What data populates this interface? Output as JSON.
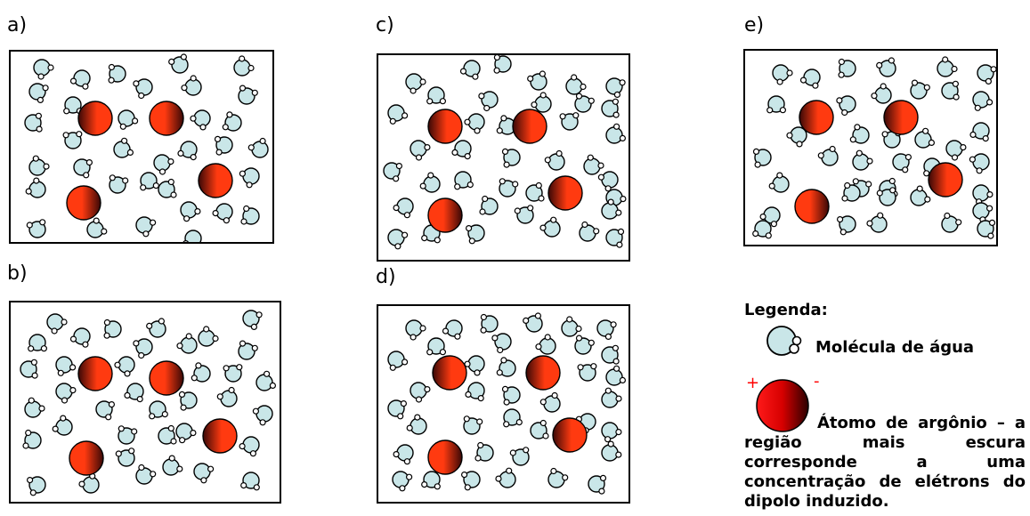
{
  "panels": [
    {
      "id": "a",
      "label": "a)",
      "argon_count": 4
    },
    {
      "id": "b",
      "label": "b)",
      "argon_count": 4
    },
    {
      "id": "c",
      "label": "c)",
      "argon_count": 4
    },
    {
      "id": "d",
      "label": "d)",
      "argon_count": 4
    },
    {
      "id": "e",
      "label": "e)",
      "argon_count": 4
    }
  ],
  "legend": {
    "title": "Legenda:",
    "water_label": "Molécula de água",
    "plus_sign": "+",
    "minus_sign": "-",
    "argon_label": "Átomo de argônio – a região mais escura corresponde a uma concentração de elétrons do dipolo induzido."
  },
  "colors": {
    "water_fill": "#c9e6e8",
    "argon_light": "#ff3a10",
    "argon_dark": "#3a0806",
    "legend_argon_light": "#ff1a1a",
    "legend_argon_dark": "#2a0000",
    "dipole_sign": "#ff0000"
  }
}
